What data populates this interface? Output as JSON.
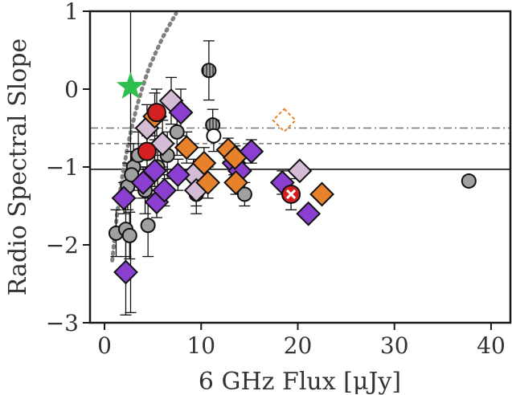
{
  "chart_data": {
    "type": "scatter",
    "xlabel": "6 GHz Flux [μJy]",
    "ylabel": "Radio Spectral Slope",
    "xlim": [
      -1.5,
      42
    ],
    "ylim": [
      -3,
      1
    ],
    "xticks": [
      0,
      10,
      20,
      30,
      40
    ],
    "yticks": [
      -3,
      -2,
      -1,
      0,
      1
    ],
    "xtick_labels": [
      "0",
      "10",
      "20",
      "30",
      "40"
    ],
    "ytick_labels": [
      "−3",
      "−2",
      "−1",
      "0",
      "1"
    ],
    "grid": false,
    "reference_lines": [
      {
        "y": -0.5,
        "style": "dashdot",
        "color": "#777777"
      },
      {
        "y": -0.7,
        "style": "dashed",
        "color": "#777777"
      },
      {
        "y": -1.03,
        "style": "solid",
        "color": "#000000"
      }
    ],
    "curve": {
      "style": "dotted",
      "color": "#808080",
      "points": [
        [
          0.8,
          -2.2
        ],
        [
          1.3,
          -1.6
        ],
        [
          1.8,
          -1.15
        ],
        [
          2.3,
          -0.8
        ],
        [
          2.8,
          -0.5
        ],
        [
          3.4,
          -0.2
        ],
        [
          4.0,
          0.05
        ],
        [
          4.6,
          0.27
        ],
        [
          5.3,
          0.47
        ],
        [
          6.0,
          0.66
        ],
        [
          6.8,
          0.84
        ],
        [
          7.4,
          0.97
        ]
      ]
    },
    "colors": {
      "gray": "#a0a0a0",
      "light_purple": "#d4bcd6",
      "purple": "#8a3fd0",
      "orange": "#e8822a",
      "red": "#d42020",
      "green": "#2fbf4f",
      "white": "#ffffff"
    },
    "series": [
      {
        "marker": "circle",
        "color": "gray",
        "points": [
          {
            "x": 1.2,
            "y": -1.85,
            "yerr": 0.3
          },
          {
            "x": 2.2,
            "y": -1.8,
            "yerr": 0.35
          },
          {
            "x": 2.6,
            "y": -1.88,
            "yerr": 0.3
          },
          {
            "x": 2.4,
            "y": -1.25,
            "yerr": 0.3
          },
          {
            "x": 3.0,
            "y": -1.0,
            "yerr": 0.3
          },
          {
            "x": 2.8,
            "y": -1.1,
            "yerr": 0.3
          },
          {
            "x": 3.5,
            "y": -0.85,
            "yerr": 0.3
          },
          {
            "x": 4.5,
            "y": -1.75,
            "yerr": 0.4
          },
          {
            "x": 4.2,
            "y": -1.3,
            "yerr": 0.3
          },
          {
            "x": 5.5,
            "y": -1.0,
            "yerr": 0.3
          },
          {
            "x": 6.5,
            "y": -0.85,
            "yerr": 0.3
          },
          {
            "x": 7.5,
            "y": -0.55,
            "yerr": 0.3
          },
          {
            "x": 9.5,
            "y": -1.35,
            "yerr": 0.25
          },
          {
            "x": 14.5,
            "y": -1.35,
            "yerr": 0.15
          },
          {
            "x": 37.7,
            "y": -1.18,
            "yerr": 0
          }
        ]
      },
      {
        "marker": "circle",
        "color": "gray",
        "hatch": "vertical",
        "points": [
          {
            "x": 10.8,
            "y": 0.24,
            "yerr": 0.38
          },
          {
            "x": 11.2,
            "y": -0.46,
            "yerr": 0.2
          }
        ]
      },
      {
        "marker": "circle",
        "color": "white",
        "points": [
          {
            "x": 11.3,
            "y": -0.6,
            "yerr": 0.2
          }
        ]
      },
      {
        "marker": "diamond",
        "color": "light_purple",
        "points": [
          {
            "x": 4.4,
            "y": -0.5,
            "yerr": 0.3
          },
          {
            "x": 6.9,
            "y": -0.15,
            "yerr": 0.3
          },
          {
            "x": 6.0,
            "y": -0.7,
            "yerr": 0.3
          },
          {
            "x": 9.2,
            "y": -1.1,
            "yerr": 0.2
          },
          {
            "x": 9.5,
            "y": -1.3,
            "yerr": 0.2
          },
          {
            "x": 20.2,
            "y": -1.05,
            "yerr": 0
          }
        ]
      },
      {
        "marker": "diamond",
        "color": "purple",
        "points": [
          {
            "x": 2.2,
            "y": -2.35,
            "yerr": 0.55
          },
          {
            "x": 2.0,
            "y": -1.4,
            "yerr": 0.2
          },
          {
            "x": 4.0,
            "y": -1.2,
            "yerr": 0.2
          },
          {
            "x": 5.2,
            "y": -1.05,
            "yerr": 0.2
          },
          {
            "x": 5.4,
            "y": -1.45,
            "yerr": 0.2
          },
          {
            "x": 6.2,
            "y": -1.3,
            "yerr": 0.2
          },
          {
            "x": 7.6,
            "y": -1.1,
            "yerr": 0.2
          },
          {
            "x": 7.9,
            "y": -0.3,
            "yerr": 0.3
          },
          {
            "x": 13.4,
            "y": -0.95,
            "yerr": 0.15
          },
          {
            "x": 14.0,
            "y": -1.05,
            "yerr": 0.15
          },
          {
            "x": 15.2,
            "y": -0.8,
            "yerr": 0.15
          },
          {
            "x": 18.4,
            "y": -1.2,
            "yerr": 0.15
          },
          {
            "x": 21.1,
            "y": -1.6,
            "yerr": 0
          }
        ]
      },
      {
        "marker": "diamond",
        "color": "orange",
        "points": [
          {
            "x": 5.2,
            "y": -0.35,
            "yerr": 0.3
          },
          {
            "x": 8.5,
            "y": -0.75,
            "yerr": 0.2
          },
          {
            "x": 10.3,
            "y": -0.95,
            "yerr": 0.2
          },
          {
            "x": 10.7,
            "y": -1.2,
            "yerr": 0.2
          },
          {
            "x": 12.8,
            "y": -0.78,
            "yerr": 0.15
          },
          {
            "x": 13.5,
            "y": -0.88,
            "yerr": 0.15
          },
          {
            "x": 13.6,
            "y": -1.2,
            "yerr": 0.15
          },
          {
            "x": 22.5,
            "y": -1.35,
            "yerr": 0
          }
        ]
      },
      {
        "marker": "diamond",
        "color": "white",
        "edgecolor": "orange",
        "points": [
          {
            "x": 18.6,
            "y": -0.4,
            "yerr": 0
          }
        ]
      },
      {
        "marker": "circle",
        "color": "red",
        "points": [
          {
            "x": 4.4,
            "y": -0.8,
            "yerr": 0.2
          },
          {
            "x": 5.4,
            "y": -0.3,
            "yerr": 0.3
          }
        ]
      },
      {
        "marker": "circle-x",
        "color": "red",
        "points": [
          {
            "x": 19.3,
            "y": -1.35,
            "yerr": 0.2
          }
        ]
      },
      {
        "marker": "star",
        "color": "green",
        "points": [
          {
            "x": 2.7,
            "y": 0.03,
            "yerr": 1.0,
            "yerr_low": 2.9
          }
        ]
      }
    ]
  }
}
